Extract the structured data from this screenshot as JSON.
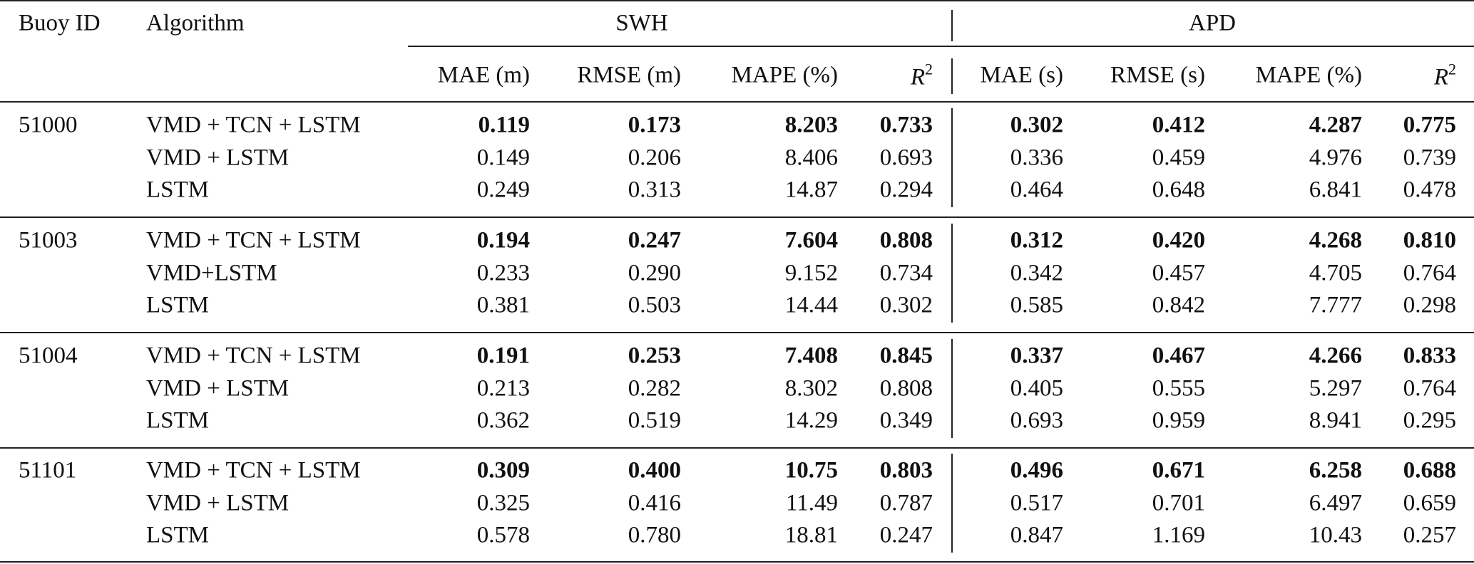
{
  "table": {
    "headers": {
      "buoy_id": "Buoy ID",
      "algorithm": "Algorithm",
      "group_swh": "SWH",
      "group_apd": "APD",
      "columns": [
        "MAE (m)",
        "RMSE (m)",
        "MAPE (%)",
        "R2",
        "MAE (s)",
        "RMSE (s)",
        "MAPE (%)",
        "R2"
      ]
    },
    "groups": [
      {
        "buoy": "51000",
        "rows": [
          {
            "algorithm": "VMD + TCN + LSTM",
            "bold": true,
            "values": [
              "0.119",
              "0.173",
              "8.203",
              "0.733",
              "0.302",
              "0.412",
              "4.287",
              "0.775"
            ]
          },
          {
            "algorithm": "VMD + LSTM",
            "bold": false,
            "values": [
              "0.149",
              "0.206",
              "8.406",
              "0.693",
              "0.336",
              "0.459",
              "4.976",
              "0.739"
            ]
          },
          {
            "algorithm": "LSTM",
            "bold": false,
            "values": [
              "0.249",
              "0.313",
              "14.87",
              "0.294",
              "0.464",
              "0.648",
              "6.841",
              "0.478"
            ]
          }
        ]
      },
      {
        "buoy": "51003",
        "rows": [
          {
            "algorithm": "VMD + TCN + LSTM",
            "bold": true,
            "values": [
              "0.194",
              "0.247",
              "7.604",
              "0.808",
              "0.312",
              "0.420",
              "4.268",
              "0.810"
            ]
          },
          {
            "algorithm": "VMD+LSTM",
            "bold": false,
            "values": [
              "0.233",
              "0.290",
              "9.152",
              "0.734",
              "0.342",
              "0.457",
              "4.705",
              "0.764"
            ]
          },
          {
            "algorithm": "LSTM",
            "bold": false,
            "values": [
              "0.381",
              "0.503",
              "14.44",
              "0.302",
              "0.585",
              "0.842",
              "7.777",
              "0.298"
            ]
          }
        ]
      },
      {
        "buoy": "51004",
        "rows": [
          {
            "algorithm": "VMD + TCN + LSTM",
            "bold": true,
            "values": [
              "0.191",
              "0.253",
              "7.408",
              "0.845",
              "0.337",
              "0.467",
              "4.266",
              "0.833"
            ]
          },
          {
            "algorithm": "VMD + LSTM",
            "bold": false,
            "values": [
              "0.213",
              "0.282",
              "8.302",
              "0.808",
              "0.405",
              "0.555",
              "5.297",
              "0.764"
            ]
          },
          {
            "algorithm": "LSTM",
            "bold": false,
            "values": [
              "0.362",
              "0.519",
              "14.29",
              "0.349",
              "0.693",
              "0.959",
              "8.941",
              "0.295"
            ]
          }
        ]
      },
      {
        "buoy": "51101",
        "rows": [
          {
            "algorithm": "VMD + TCN + LSTM",
            "bold": true,
            "values": [
              "0.309",
              "0.400",
              "10.75",
              "0.803",
              "0.496",
              "0.671",
              "6.258",
              "0.688"
            ]
          },
          {
            "algorithm": "VMD + LSTM",
            "bold": false,
            "values": [
              "0.325",
              "0.416",
              "11.49",
              "0.787",
              "0.517",
              "0.701",
              "6.497",
              "0.659"
            ]
          },
          {
            "algorithm": "LSTM",
            "bold": false,
            "values": [
              "0.578",
              "0.780",
              "18.81",
              "0.247",
              "0.847",
              "1.169",
              "10.43",
              "0.257"
            ]
          }
        ]
      }
    ]
  }
}
